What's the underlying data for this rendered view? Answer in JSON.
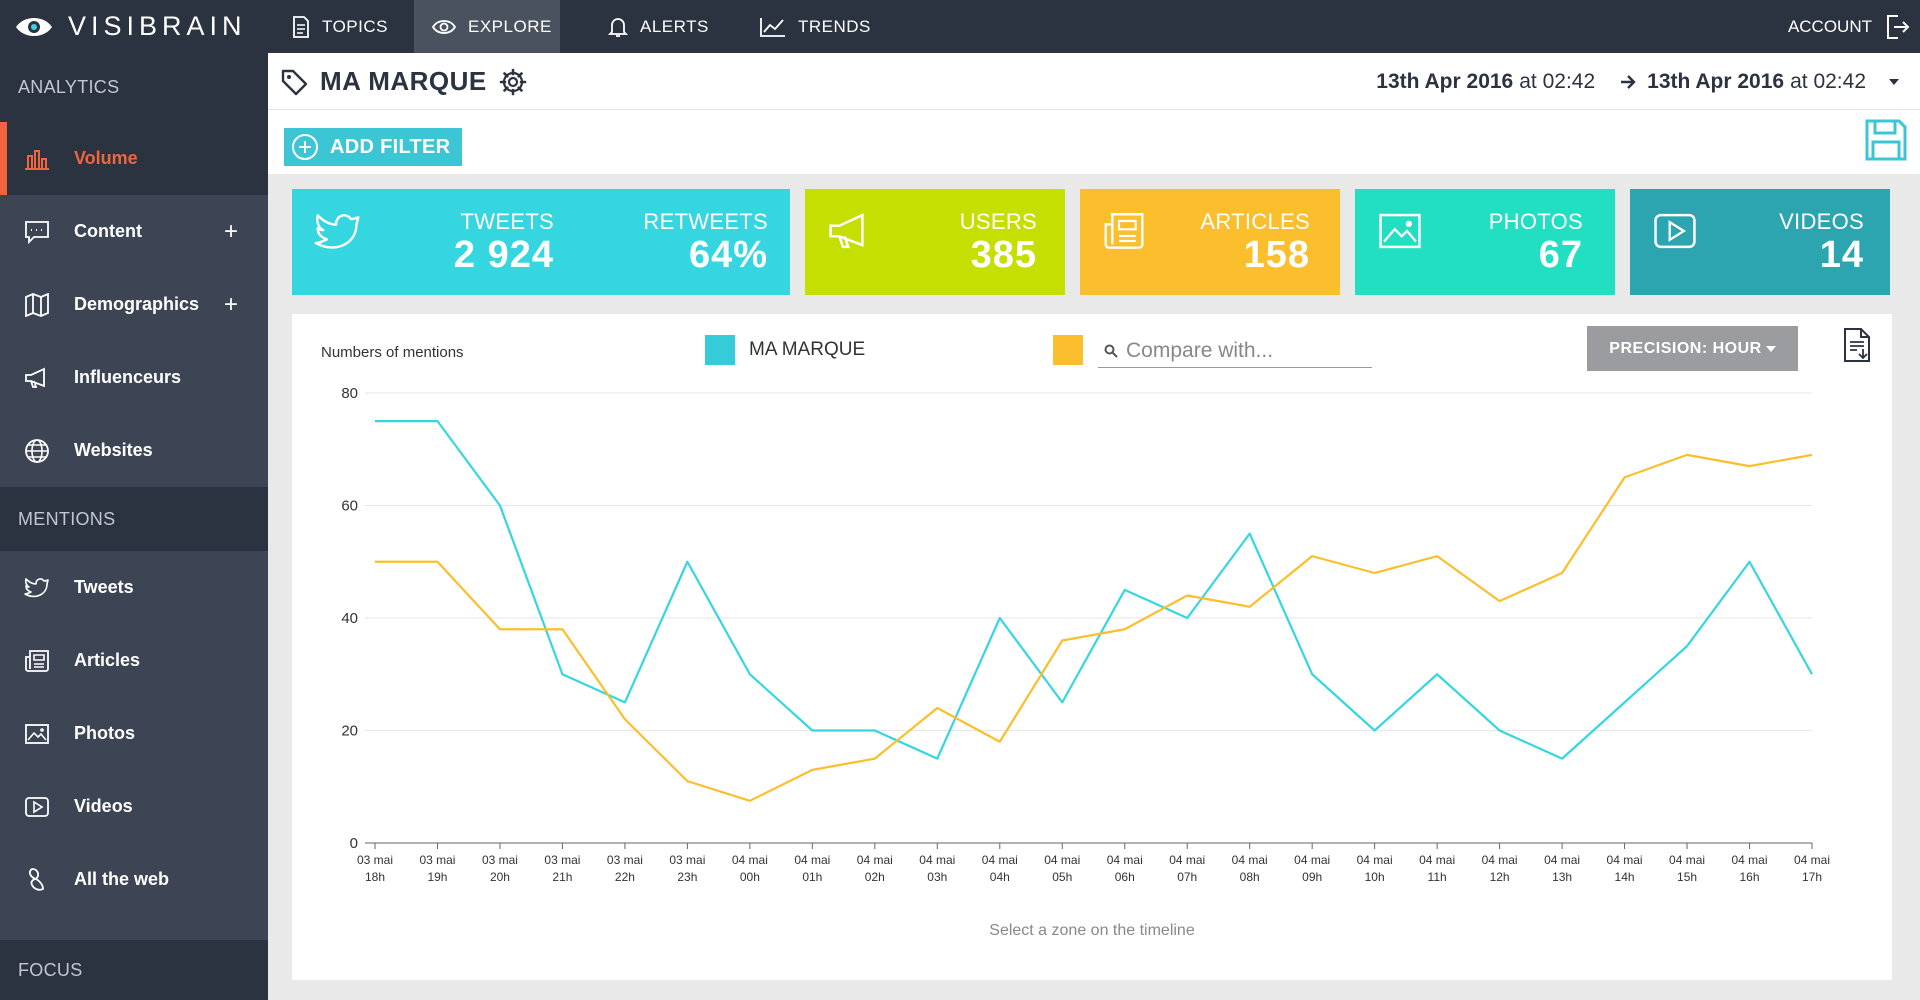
{
  "app": {
    "logo_text": "VISIBRAIN"
  },
  "nav": {
    "items": [
      {
        "label": "TOPICS"
      },
      {
        "label": "EXPLORE"
      },
      {
        "label": "ALERTS"
      },
      {
        "label": "TRENDS"
      }
    ],
    "account": "ACCOUNT"
  },
  "sidebar": {
    "sections": [
      "ANALYTICS",
      "MENTIONS",
      "FOCUS"
    ],
    "analytics": [
      {
        "label": "Volume",
        "icon": "bar-chart-icon"
      },
      {
        "label": "Content",
        "icon": "chat-icon",
        "plus": "+"
      },
      {
        "label": "Demographics",
        "icon": "map-icon",
        "plus": "+"
      },
      {
        "label": "Influenceurs",
        "icon": "megaphone-icon"
      },
      {
        "label": "Websites",
        "icon": "globe-icon"
      }
    ],
    "mentions": [
      {
        "label": "Tweets",
        "icon": "twitter-icon"
      },
      {
        "label": "Articles",
        "icon": "newspaper-icon"
      },
      {
        "label": "Photos",
        "icon": "image-icon"
      },
      {
        "label": "Videos",
        "icon": "play-icon"
      },
      {
        "label": "All the web",
        "icon": "web-icon"
      }
    ]
  },
  "header": {
    "title": "MA MARQUE",
    "date_from": "13th Apr 2016",
    "time_from": "at 02:42",
    "date_to": "13th Apr 2016",
    "time_to": "at 02:42"
  },
  "toolbar": {
    "add_filter": "ADD FILTER"
  },
  "kpis": {
    "tweets": {
      "label": "TWEETS",
      "value": "2 924"
    },
    "retweets": {
      "label": "RETWEETS",
      "value": "64%"
    },
    "users": {
      "label": "USERS",
      "value": "385"
    },
    "articles": {
      "label": "ARTICLES",
      "value": "158"
    },
    "photos": {
      "label": "PHOTOS",
      "value": "67"
    },
    "videos": {
      "label": "VIDEOS",
      "value": "14"
    }
  },
  "colors": {
    "tweets": "#36d6e0",
    "users": "#c6df02",
    "articles": "#fbbe2c",
    "photos": "#21dfc0",
    "videos": "#2da5b0",
    "accent": "#f0653c"
  },
  "chart": {
    "legend_series": "MA MARQUE",
    "compare_placeholder": "Compare with...",
    "precision_label": "PRECISION: HOUR",
    "hint": "Select a zone on the timeline"
  },
  "chart_data": {
    "type": "line",
    "ylabel": "Numbers of mentions",
    "ylim": [
      0,
      80
    ],
    "yticks": [
      0,
      20,
      40,
      60,
      80
    ],
    "grid": true,
    "legend_placement": "top",
    "categories": [
      [
        "03 mai",
        "18h"
      ],
      [
        "03 mai",
        "19h"
      ],
      [
        "03 mai",
        "20h"
      ],
      [
        "03 mai",
        "21h"
      ],
      [
        "03 mai",
        "22h"
      ],
      [
        "03 mai",
        "23h"
      ],
      [
        "04 mai",
        "00h"
      ],
      [
        "04 mai",
        "01h"
      ],
      [
        "04 mai",
        "02h"
      ],
      [
        "04 mai",
        "03h"
      ],
      [
        "04 mai",
        "04h"
      ],
      [
        "04 mai",
        "05h"
      ],
      [
        "04 mai",
        "06h"
      ],
      [
        "04 mai",
        "07h"
      ],
      [
        "04 mai",
        "08h"
      ],
      [
        "04 mai",
        "09h"
      ],
      [
        "04 mai",
        "10h"
      ],
      [
        "04 mai",
        "11h"
      ],
      [
        "04 mai",
        "12h"
      ],
      [
        "04 mai",
        "13h"
      ],
      [
        "04 mai",
        "14h"
      ],
      [
        "04 mai",
        "15h"
      ],
      [
        "04 mai",
        "16h"
      ],
      [
        "04 mai",
        "17h"
      ]
    ],
    "series": [
      {
        "name": "MA MARQUE",
        "color": "#36d6e0",
        "values": [
          75,
          75,
          60,
          30,
          25,
          50,
          30,
          20,
          20,
          15,
          40,
          25,
          45,
          40,
          55,
          30,
          20,
          30,
          20,
          15,
          25,
          35,
          50,
          30
        ]
      },
      {
        "color": "#fbbe2c",
        "values": [
          50,
          50,
          38,
          38,
          22,
          11,
          7.5,
          13,
          15,
          24,
          18,
          36,
          38,
          44,
          42,
          51,
          48,
          51,
          43,
          48,
          65,
          69,
          67,
          69
        ]
      }
    ]
  }
}
